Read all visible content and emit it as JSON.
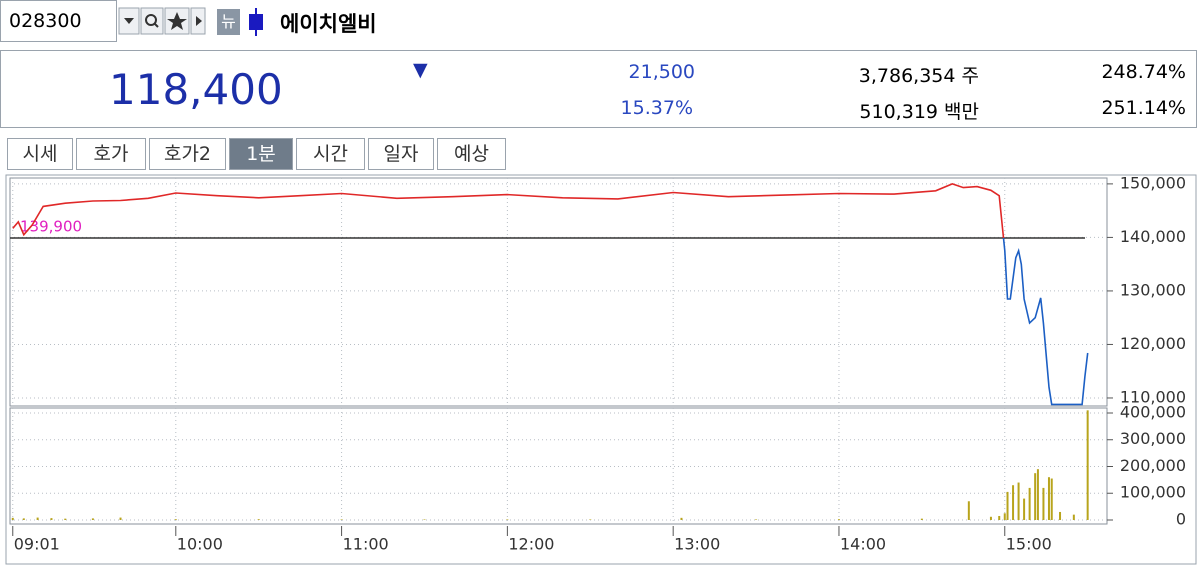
{
  "header": {
    "code": "028300",
    "new_badge": "뉴",
    "name": "에이치엘비"
  },
  "quote": {
    "price": "118,400",
    "direction": "▼",
    "change": "21,500",
    "change_rate": "15.37%",
    "volume": "3,786,354 주",
    "amount": "510,319 백만",
    "turnover": "248.74%",
    "ratio": "251.14%"
  },
  "tabs": {
    "items": [
      "시세",
      "호가",
      "호가2",
      "1분",
      "시간",
      "일자",
      "예상"
    ],
    "active": 3
  },
  "chart_data": [
    {
      "type": "line",
      "x": [
        "09:01",
        "09:03",
        "09:05",
        "09:08",
        "09:12",
        "09:20",
        "09:30",
        "09:40",
        "09:50",
        "10:00",
        "10:15",
        "10:30",
        "10:45",
        "11:00",
        "11:20",
        "11:40",
        "12:00",
        "12:20",
        "12:40",
        "13:00",
        "13:20",
        "13:40",
        "14:00",
        "14:20",
        "14:35",
        "14:41",
        "14:45",
        "14:50",
        "14:55",
        "14:58",
        "15:00",
        "15:01",
        "15:02",
        "15:04",
        "15:05",
        "15:06",
        "15:07",
        "15:09",
        "15:11",
        "15:13",
        "15:14",
        "15:16",
        "15:17",
        "15:28",
        "15:29",
        "15:30"
      ],
      "values": [
        141700,
        142900,
        140500,
        142300,
        145800,
        146400,
        146800,
        146900,
        147300,
        148300,
        147800,
        147400,
        147800,
        148200,
        147300,
        147600,
        148000,
        147400,
        147200,
        148400,
        147600,
        147900,
        148200,
        148100,
        148700,
        150000,
        149300,
        149500,
        148800,
        147800,
        137500,
        128500,
        128500,
        136200,
        137500,
        135000,
        128500,
        124000,
        125000,
        128700,
        124000,
        112000,
        108800,
        108800,
        114000,
        118400
      ],
      "up_color": "#e02828",
      "down_color": "#1c5fc4",
      "reference": {
        "value": 139900,
        "label": "139,900"
      },
      "reference_color": "#333333",
      "reference_label_color": "#e020c0",
      "xlim": [
        "09:00",
        "15:37"
      ],
      "ylim": [
        108500,
        151100
      ],
      "yticks": [
        {
          "value": 110000,
          "label": "110,000"
        },
        {
          "value": 120000,
          "label": "120,000"
        },
        {
          "value": 130000,
          "label": "130,000"
        },
        {
          "value": 140000,
          "label": "140,000"
        },
        {
          "value": 150000,
          "label": "150,000"
        }
      ],
      "grid": true
    },
    {
      "type": "bar",
      "x": [
        "09:01",
        "09:05",
        "09:10",
        "09:15",
        "09:20",
        "09:30",
        "09:40",
        "10:00",
        "10:30",
        "11:00",
        "11:30",
        "12:00",
        "12:30",
        "13:03",
        "13:30",
        "14:00",
        "14:30",
        "14:47",
        "14:55",
        "14:58",
        "15:00",
        "15:01",
        "15:03",
        "15:05",
        "15:07",
        "15:09",
        "15:11",
        "15:12",
        "15:14",
        "15:16",
        "15:17",
        "15:20",
        "15:25",
        "15:30"
      ],
      "values": [
        8000,
        6000,
        9000,
        7000,
        5000,
        6000,
        9000,
        3000,
        3000,
        2000,
        2000,
        2000,
        2000,
        8000,
        2000,
        3000,
        5000,
        70000,
        12000,
        15000,
        25000,
        105000,
        130000,
        140000,
        80000,
        120000,
        175000,
        190000,
        120000,
        160000,
        155000,
        30000,
        20000,
        410000
      ],
      "color": "#b8a41c",
      "xlim": [
        "09:00",
        "15:37"
      ],
      "ylim": [
        -15000,
        418700
      ],
      "xticks": [
        "09:01",
        "10:00",
        "11:00",
        "12:00",
        "13:00",
        "14:00",
        "15:00"
      ],
      "yticks": [
        0,
        {
          "value": 100000,
          "label": "100,000"
        },
        {
          "value": 200000,
          "label": "200,000"
        },
        {
          "value": 300000,
          "label": "300,000"
        },
        {
          "value": 400000,
          "label": "400,000"
        }
      ],
      "grid": true
    }
  ]
}
